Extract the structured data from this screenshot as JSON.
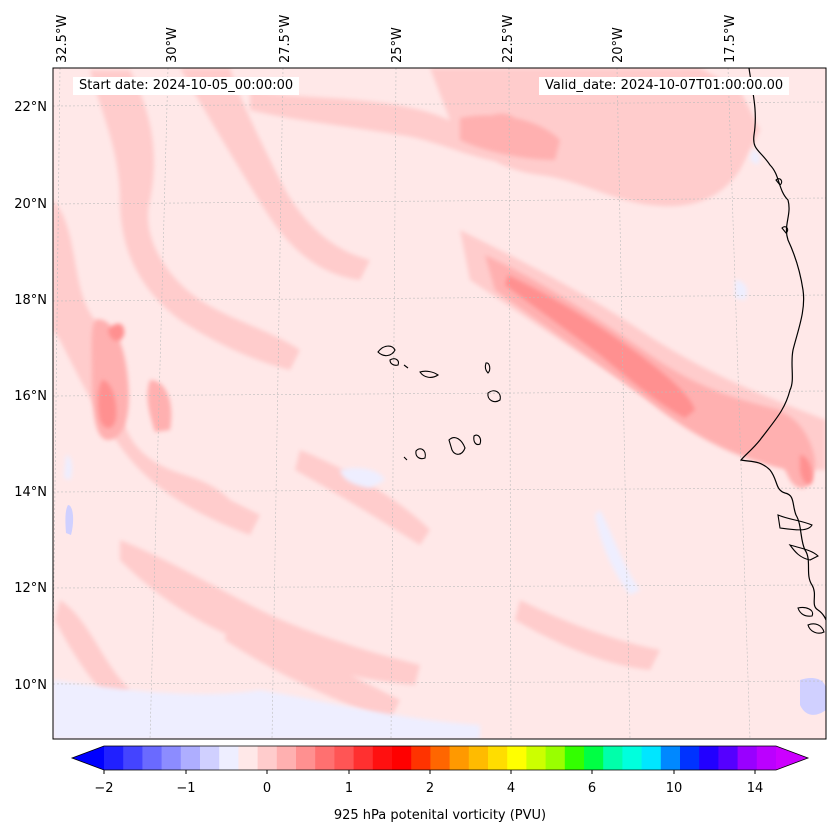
{
  "header": {
    "start_date": "Start date: 2024-10-05_00:00:00",
    "valid_date": "Valid_date: 2024-10-07T01:00:00.00"
  },
  "map": {
    "longitude_labels": [
      "32.5°W",
      "30°W",
      "27.5°W",
      "25°W",
      "22.5°W",
      "20°W",
      "17.5°W"
    ],
    "latitude_labels": [
      "22°N",
      "20°N",
      "18°N",
      "16°N",
      "14°N",
      "12°N",
      "10°N"
    ],
    "field": "925 hPa potenital vorticity (PVU)",
    "background_level_color": "#ffe8e8"
  },
  "colorbar": {
    "label": "925 hPa potenital vorticity (PVU)",
    "tick_labels": [
      "−2",
      "−1",
      "0",
      "1",
      "2",
      "4",
      "6",
      "10",
      "14"
    ],
    "extend": "both",
    "colors": [
      "#0000ff",
      "#2020ff",
      "#4444ff",
      "#6a6aff",
      "#8c8cff",
      "#aeaeff",
      "#d0d0ff",
      "#eeeeff",
      "#ffe8e8",
      "#ffcccc",
      "#ffb0b0",
      "#ff9090",
      "#ff7070",
      "#ff5555",
      "#ff3030",
      "#ff1010",
      "#ff0000",
      "#ff3300",
      "#ff6600",
      "#ff9900",
      "#ffbb00",
      "#ffdd00",
      "#ffff00",
      "#ccff00",
      "#99ff00",
      "#33ff00",
      "#00ff44",
      "#00ffaa",
      "#00ffdd",
      "#00e6ff",
      "#0088ff",
      "#0033ff",
      "#2200ff",
      "#5500ff",
      "#9900ff",
      "#bb00ff",
      "#cc00ff"
    ]
  }
}
